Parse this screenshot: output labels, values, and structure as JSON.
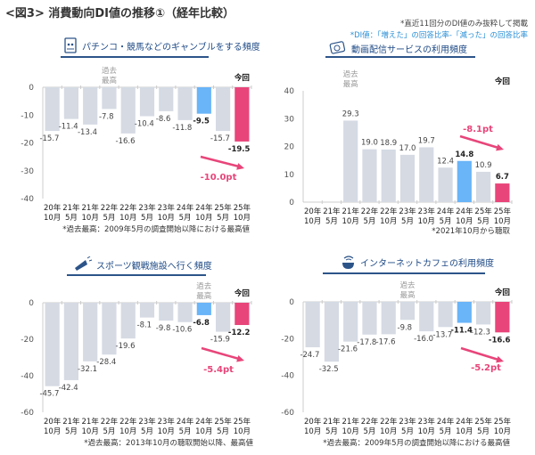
{
  "header": {
    "title": "<図3> 消費動向DI値の推移①（経年比較）",
    "note1": "*直近11回分のDI値のみ抜粋して掲載",
    "note2": "*DI値：「増えた」の回答比率-「減った」の回答比率"
  },
  "colors": {
    "normal": "#d5dae3",
    "previous_year": "#6ab4f8",
    "current": "#e8457a",
    "arrow": "#e8457a",
    "title": "#1e4a86"
  },
  "labels": {
    "record_high": "過去最高",
    "current": "今回"
  },
  "chart_data": [
    {
      "type": "bar",
      "title": "パチンコ・競馬などのギャンブルをする頻度",
      "icon": "pachinko-machine-icon",
      "categories": [
        "20年 10月",
        "21年 5月",
        "21年 10月",
        "22年 5月",
        "22年 10月",
        "23年 5月",
        "23年 10月",
        "24年 5月",
        "24年 10月",
        "25年 5月",
        "25年 10月"
      ],
      "values": [
        -15.7,
        -11.4,
        -13.4,
        -7.8,
        -16.6,
        -10.4,
        -8.6,
        -11.8,
        -9.5,
        -15.7,
        -19.5
      ],
      "ylim": [
        -40,
        0
      ],
      "yticks": [
        0,
        -10,
        -20,
        -30,
        -40
      ],
      "record_high_index": 3,
      "change": "-10.0pt",
      "footnote": "*過去最高：2009年5月の調査開始以降における最高値"
    },
    {
      "type": "bar",
      "title": "動画配信サービスの利用頻度",
      "icon": "video-streaming-icon",
      "categories": [
        "20年 10月",
        "21年 5月",
        "21年 10月",
        "22年 5月",
        "22年 10月",
        "23年 5月",
        "23年 10月",
        "24年 5月",
        "24年 10月",
        "25年 5月",
        "25年 10月"
      ],
      "values": [
        null,
        null,
        29.3,
        19.0,
        18.9,
        17.0,
        19.7,
        12.4,
        14.8,
        10.9,
        6.7
      ],
      "ylim": [
        0,
        40
      ],
      "yticks": [
        40,
        30,
        20,
        10,
        0
      ],
      "record_high_index": 2,
      "change": "-8.1pt",
      "footnote": "*2021年10月から聴取"
    },
    {
      "type": "bar",
      "title": "スポーツ観戦施設へ行く頻度",
      "icon": "megaphone-icon",
      "categories": [
        "20年 10月",
        "21年 5月",
        "21年 10月",
        "22年 5月",
        "22年 10月",
        "23年 5月",
        "23年 10月",
        "24年 5月",
        "24年 10月",
        "25年 5月",
        "25年 10月"
      ],
      "values": [
        -45.7,
        -42.4,
        -32.1,
        -28.4,
        -19.6,
        -8.1,
        -9.8,
        -10.6,
        -6.8,
        -15.9,
        -12.2
      ],
      "ylim": [
        -60,
        0
      ],
      "yticks": [
        0,
        -20,
        -40,
        -60
      ],
      "record_high_index": 8,
      "change": "-5.4pt",
      "footnote": "*過去最高：2013年10月の聴取開始以降、最高値"
    },
    {
      "type": "bar",
      "title": "インターネットカフェの利用頻度",
      "icon": "wifi-coffee-cup-icon",
      "categories": [
        "20年 10月",
        "21年 5月",
        "21年 10月",
        "22年 5月",
        "22年 10月",
        "23年 5月",
        "23年 10月",
        "24年 5月",
        "24年 10月",
        "25年 5月",
        "25年 10月"
      ],
      "values": [
        -24.7,
        -32.5,
        -21.6,
        -17.8,
        -17.6,
        -9.8,
        -16.0,
        -13.7,
        -11.4,
        -12.3,
        -16.6
      ],
      "ylim": [
        -60,
        0
      ],
      "yticks": [
        0,
        -20,
        -40,
        -60
      ],
      "record_high_index": 5,
      "change": "-5.2pt",
      "footnote": "*過去最高：2009年5月の調査開始以降における最高値"
    }
  ]
}
